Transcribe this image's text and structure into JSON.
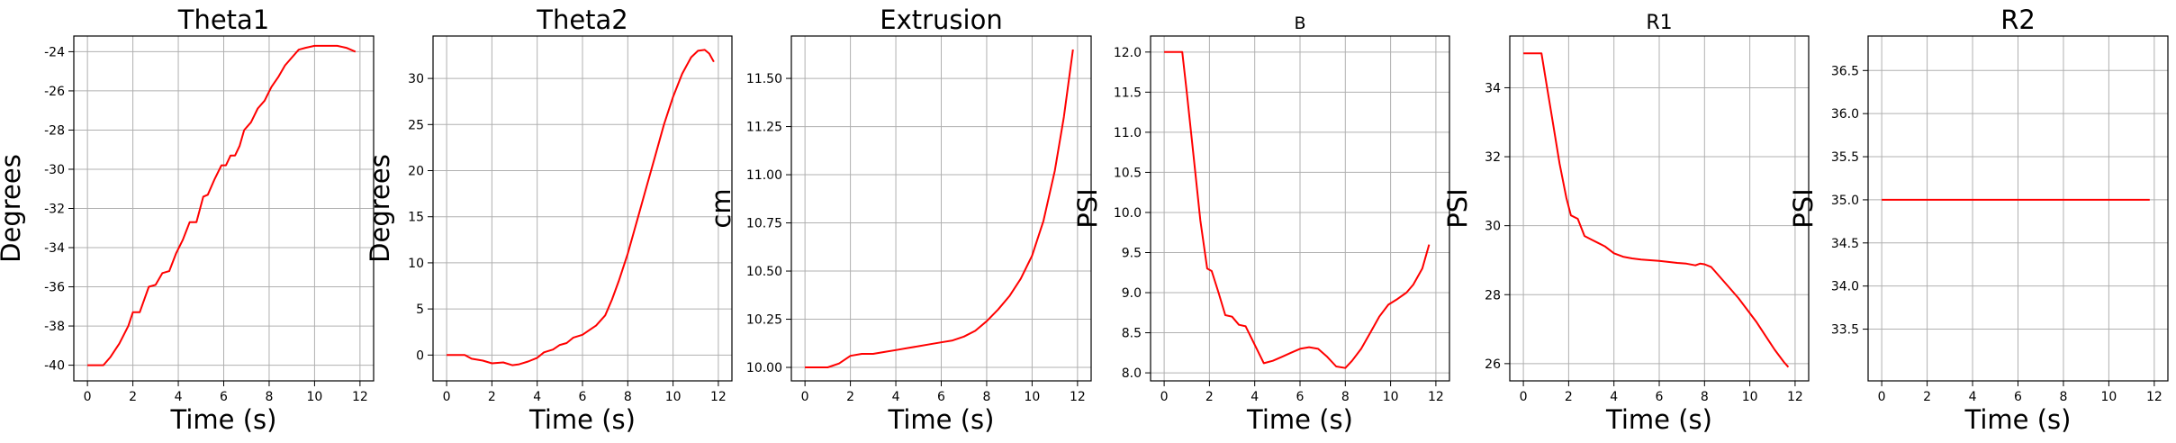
{
  "chart_data": [
    {
      "type": "line",
      "title": "Theta1",
      "xlabel": "Time (s)",
      "ylabel": "Degrees",
      "xlim": [
        -0.6,
        12.6
      ],
      "ylim": [
        -40.8,
        -23.2
      ],
      "xticks": [
        0,
        2,
        4,
        6,
        8,
        10,
        12
      ],
      "yticks": [
        -40,
        -38,
        -36,
        -34,
        -32,
        -30,
        -28,
        -26,
        -24
      ],
      "grid": true,
      "series": [
        {
          "color": "#ff0000",
          "x": [
            0,
            0.7,
            1.0,
            1.4,
            1.8,
            2.0,
            2.3,
            2.7,
            3.0,
            3.3,
            3.6,
            3.9,
            4.2,
            4.5,
            4.8,
            5.1,
            5.3,
            5.6,
            5.9,
            6.1,
            6.3,
            6.5,
            6.7,
            6.9,
            7.2,
            7.5,
            7.8,
            8.1,
            8.4,
            8.7,
            9.0,
            9.3,
            9.6,
            10.0,
            10.5,
            11.0,
            11.4,
            11.8
          ],
          "values": [
            -40.0,
            -40.0,
            -39.6,
            -38.9,
            -38.0,
            -37.3,
            -37.3,
            -36.0,
            -35.9,
            -35.3,
            -35.2,
            -34.3,
            -33.6,
            -32.7,
            -32.7,
            -31.4,
            -31.3,
            -30.5,
            -29.8,
            -29.8,
            -29.3,
            -29.3,
            -28.8,
            -28.0,
            -27.6,
            -26.9,
            -26.5,
            -25.8,
            -25.3,
            -24.7,
            -24.3,
            -23.9,
            -23.8,
            -23.7,
            -23.7,
            -23.7,
            -23.8,
            -24.0
          ]
        }
      ]
    },
    {
      "type": "line",
      "title": "Theta2",
      "xlabel": "Time (s)",
      "ylabel": "Degrees",
      "xlim": [
        -0.6,
        12.6
      ],
      "ylim": [
        -2.8,
        34.6
      ],
      "xticks": [
        0,
        2,
        4,
        6,
        8,
        10,
        12
      ],
      "yticks": [
        0,
        5,
        10,
        15,
        20,
        25,
        30
      ],
      "grid": true,
      "series": [
        {
          "color": "#ff0000",
          "x": [
            0,
            0.8,
            1.1,
            1.6,
            2.0,
            2.5,
            2.9,
            3.2,
            3.6,
            4.0,
            4.3,
            4.7,
            5.0,
            5.3,
            5.6,
            6.0,
            6.3,
            6.6,
            7.0,
            7.3,
            7.6,
            8.0,
            8.4,
            8.8,
            9.2,
            9.6,
            10.0,
            10.4,
            10.8,
            11.1,
            11.4,
            11.6,
            11.8
          ],
          "values": [
            0,
            0,
            -0.4,
            -0.6,
            -0.9,
            -0.8,
            -1.1,
            -1.0,
            -0.7,
            -0.3,
            0.3,
            0.6,
            1.1,
            1.3,
            1.9,
            2.2,
            2.7,
            3.2,
            4.3,
            6.0,
            8.0,
            11.0,
            14.5,
            18.0,
            21.5,
            25.0,
            28.0,
            30.5,
            32.3,
            33.0,
            33.1,
            32.7,
            31.8
          ]
        }
      ]
    },
    {
      "type": "line",
      "title": "Extrusion",
      "xlabel": "Time (s)",
      "ylabel": "cm",
      "xlim": [
        -0.6,
        12.6
      ],
      "ylim": [
        9.93,
        11.72
      ],
      "xticks": [
        0,
        2,
        4,
        6,
        8,
        10,
        12
      ],
      "yticks": [
        10.0,
        10.25,
        10.5,
        10.75,
        11.0,
        11.25,
        11.5
      ],
      "ytick_labels": [
        "10.00",
        "10.25",
        "10.50",
        "10.75",
        "11.00",
        "11.25",
        "11.50"
      ],
      "grid": true,
      "series": [
        {
          "color": "#ff0000",
          "x": [
            0,
            1.0,
            1.5,
            2.0,
            2.5,
            3.0,
            3.5,
            4.0,
            4.5,
            5.0,
            5.5,
            6.0,
            6.5,
            7.0,
            7.5,
            8.0,
            8.5,
            9.0,
            9.5,
            10.0,
            10.5,
            11.0,
            11.4,
            11.8
          ],
          "values": [
            10.0,
            10.0,
            10.02,
            10.06,
            10.07,
            10.07,
            10.08,
            10.09,
            10.1,
            10.11,
            10.12,
            10.13,
            10.14,
            10.16,
            10.19,
            10.24,
            10.3,
            10.37,
            10.46,
            10.58,
            10.76,
            11.02,
            11.3,
            11.65
          ]
        }
      ]
    },
    {
      "type": "line",
      "title": "B",
      "xlabel": "Time (s)",
      "ylabel": "PSI",
      "xlim": [
        -0.6,
        12.6
      ],
      "ylim": [
        7.9,
        12.2
      ],
      "xticks": [
        0,
        2,
        4,
        6,
        8,
        10,
        12
      ],
      "yticks": [
        8.0,
        8.5,
        9.0,
        9.5,
        10.0,
        10.5,
        11.0,
        11.5,
        12.0
      ],
      "ytick_labels": [
        "8.0",
        "8.5",
        "9.0",
        "9.5",
        "10.0",
        "10.5",
        "11.0",
        "11.5",
        "12.0"
      ],
      "grid": true,
      "series": [
        {
          "color": "#ff0000",
          "x": [
            0,
            0.8,
            1.0,
            1.3,
            1.6,
            1.9,
            2.1,
            2.4,
            2.7,
            3.0,
            3.3,
            3.6,
            4.0,
            4.4,
            4.8,
            5.2,
            5.6,
            6.0,
            6.4,
            6.8,
            7.2,
            7.6,
            8.0,
            8.3,
            8.7,
            9.1,
            9.5,
            9.9,
            10.3,
            10.7,
            11.0,
            11.4,
            11.7
          ],
          "values": [
            12.0,
            12.0,
            11.5,
            10.7,
            9.9,
            9.3,
            9.27,
            9.0,
            8.72,
            8.7,
            8.6,
            8.58,
            8.35,
            8.12,
            8.15,
            8.2,
            8.25,
            8.3,
            8.32,
            8.3,
            8.2,
            8.08,
            8.06,
            8.15,
            8.3,
            8.5,
            8.7,
            8.85,
            8.92,
            9.0,
            9.1,
            9.3,
            9.6
          ]
        }
      ]
    },
    {
      "type": "line",
      "title": "R1",
      "xlabel": "Time (s)",
      "ylabel": "PSI",
      "xlim": [
        -0.6,
        12.6
      ],
      "ylim": [
        25.5,
        35.5
      ],
      "xticks": [
        0,
        2,
        4,
        6,
        8,
        10,
        12
      ],
      "yticks": [
        26,
        28,
        30,
        32,
        34
      ],
      "grid": true,
      "series": [
        {
          "color": "#ff0000",
          "x": [
            0,
            0.8,
            1.0,
            1.3,
            1.6,
            1.9,
            2.1,
            2.4,
            2.7,
            3.0,
            3.3,
            3.6,
            4.0,
            4.4,
            4.8,
            5.2,
            5.6,
            6.0,
            6.4,
            6.8,
            7.2,
            7.6,
            7.8,
            8.0,
            8.3,
            8.7,
            9.1,
            9.5,
            9.9,
            10.3,
            10.7,
            11.1,
            11.5,
            11.7
          ],
          "values": [
            35.0,
            35.0,
            34.2,
            33.0,
            31.8,
            30.8,
            30.3,
            30.2,
            29.7,
            29.6,
            29.5,
            29.4,
            29.2,
            29.1,
            29.05,
            29.02,
            29.0,
            28.98,
            28.95,
            28.92,
            28.9,
            28.85,
            28.9,
            28.88,
            28.8,
            28.5,
            28.2,
            27.9,
            27.55,
            27.2,
            26.8,
            26.4,
            26.05,
            25.9
          ]
        }
      ]
    },
    {
      "type": "line",
      "title": "R2",
      "xlabel": "Time (s)",
      "ylabel": "PSI",
      "xlim": [
        -0.6,
        12.6
      ],
      "ylim": [
        32.9,
        36.9
      ],
      "xticks": [
        0,
        2,
        4,
        6,
        8,
        10,
        12
      ],
      "yticks": [
        33.5,
        34.0,
        34.5,
        35.0,
        35.5,
        36.0,
        36.5
      ],
      "ytick_labels": [
        "33.5",
        "34.0",
        "34.5",
        "35.0",
        "35.5",
        "36.0",
        "36.5"
      ],
      "grid": true,
      "series": [
        {
          "color": "#ff0000",
          "x": [
            0,
            11.8
          ],
          "values": [
            35.0,
            35.0
          ]
        }
      ]
    }
  ]
}
